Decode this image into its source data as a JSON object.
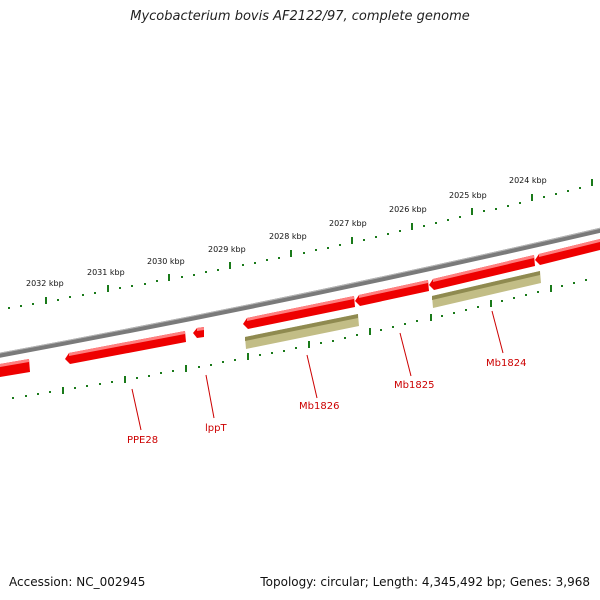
{
  "title": "Mycobacterium bovis AF2122/97, complete genome",
  "footer": {
    "accession": "Accession: NC_002945",
    "summary": "Topology: circular; Length: 4,345,492 bp; Genes: 3,968"
  },
  "kbp_labels": [
    "2024 kbp",
    "2025 kbp",
    "2026 kbp",
    "2027 kbp",
    "2028 kbp",
    "2029 kbp",
    "2030 kbp",
    "2031 kbp",
    "2032 kbp"
  ],
  "genes": [
    "Mb1824",
    "Mb1825",
    "Mb1826",
    "lppT",
    "PPE28"
  ],
  "colors": {
    "backbone": "#808080",
    "gene": "#ee0000",
    "gene_highlight": "#ff8080",
    "cds_feature": "#b5b070",
    "ticks": "#1a7a1a",
    "label": "#cc0000"
  }
}
